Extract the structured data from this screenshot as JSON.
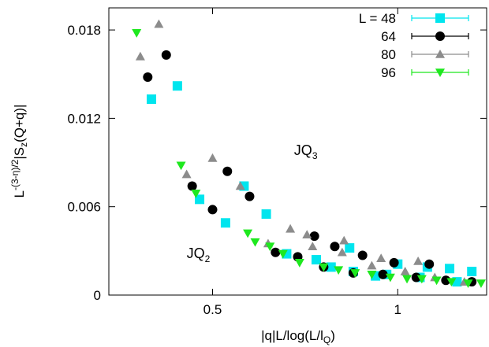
{
  "chart_data": {
    "type": "scatter",
    "xlabel": {
      "main": "|q|L/log(L/l",
      "sub": "Q",
      "tail": ")"
    },
    "ylabel": {
      "p1": "L",
      "sup": "-(3-η)/2",
      "p2": "|S",
      "sub": "z",
      "p3": "(Q+q)|"
    },
    "xlim": [
      0.22,
      1.24
    ],
    "ylim": [
      0,
      0.0195
    ],
    "x_ticks": [
      0.5,
      1
    ],
    "x_tick_labels": [
      "0.5",
      "1"
    ],
    "y_ticks": [
      0,
      0.006,
      0.012,
      0.018
    ],
    "y_tick_labels": [
      "0",
      "0.006",
      "0.012",
      "0.018"
    ],
    "legend_position": "top-right",
    "grid": false,
    "annotations": [
      {
        "main": "JQ",
        "sub": "3",
        "x": 0.72,
        "y": 0.0095
      },
      {
        "main": "JQ",
        "sub": "2",
        "x": 0.43,
        "y": 0.0025
      }
    ],
    "series": [
      {
        "name": "L = 48",
        "color": "#00e5ee",
        "marker": "square",
        "x": [
          0.335,
          0.405,
          0.465,
          0.535,
          0.585,
          0.645,
          0.7,
          0.78,
          0.87,
          0.97,
          1.06,
          1.16,
          0.82,
          0.88,
          0.94,
          1.0,
          1.08,
          1.14,
          1.2
        ],
        "y": [
          0.0133,
          0.0142,
          0.0065,
          0.0049,
          0.0074,
          0.0055,
          0.0028,
          0.0024,
          0.0032,
          0.0014,
          0.0012,
          0.0009,
          0.0019,
          0.0016,
          0.0013,
          0.0021,
          0.0019,
          0.0018,
          0.0016
        ]
      },
      {
        "name": "64",
        "color": "#000000",
        "marker": "circle",
        "x": [
          0.325,
          0.375,
          0.445,
          0.5,
          0.54,
          0.6,
          0.67,
          0.73,
          0.8,
          0.88,
          0.96,
          1.05,
          1.13,
          1.2,
          0.775,
          0.83,
          0.905,
          0.99,
          1.085
        ],
        "y": [
          0.0148,
          0.0163,
          0.0074,
          0.0058,
          0.0084,
          0.0067,
          0.0029,
          0.0026,
          0.0019,
          0.0015,
          0.0014,
          0.0012,
          0.001,
          0.0009,
          0.004,
          0.0033,
          0.0027,
          0.0022,
          0.0021
        ]
      },
      {
        "name": "80",
        "color": "#8c8c8c",
        "marker": "triangle",
        "x": [
          0.305,
          0.355,
          0.43,
          0.5,
          0.575,
          0.65,
          0.71,
          0.77,
          0.85,
          0.93,
          1.02,
          1.1,
          1.18,
          0.755,
          0.855,
          0.955,
          1.055
        ],
        "y": [
          0.0162,
          0.0184,
          0.0082,
          0.0093,
          0.0074,
          0.0035,
          0.0045,
          0.0033,
          0.0029,
          0.002,
          0.0016,
          0.0012,
          0.0009,
          0.0041,
          0.0037,
          0.0025,
          0.0023
        ]
      },
      {
        "name": "96",
        "color": "#1ee81e",
        "marker": "triangle-down",
        "x": [
          0.295,
          0.415,
          0.455,
          0.595,
          0.615,
          0.655,
          0.69,
          0.735,
          0.8,
          0.84,
          0.885,
          0.93,
          0.98,
          1.025,
          1.065,
          1.105,
          1.145,
          1.19,
          1.225
        ],
        "y": [
          0.0178,
          0.0088,
          0.0069,
          0.0042,
          0.0036,
          0.0033,
          0.0028,
          0.0022,
          0.0019,
          0.0017,
          0.0015,
          0.0014,
          0.0012,
          0.0011,
          0.0011,
          0.001,
          0.0009,
          0.0008,
          0.0008
        ]
      }
    ]
  }
}
